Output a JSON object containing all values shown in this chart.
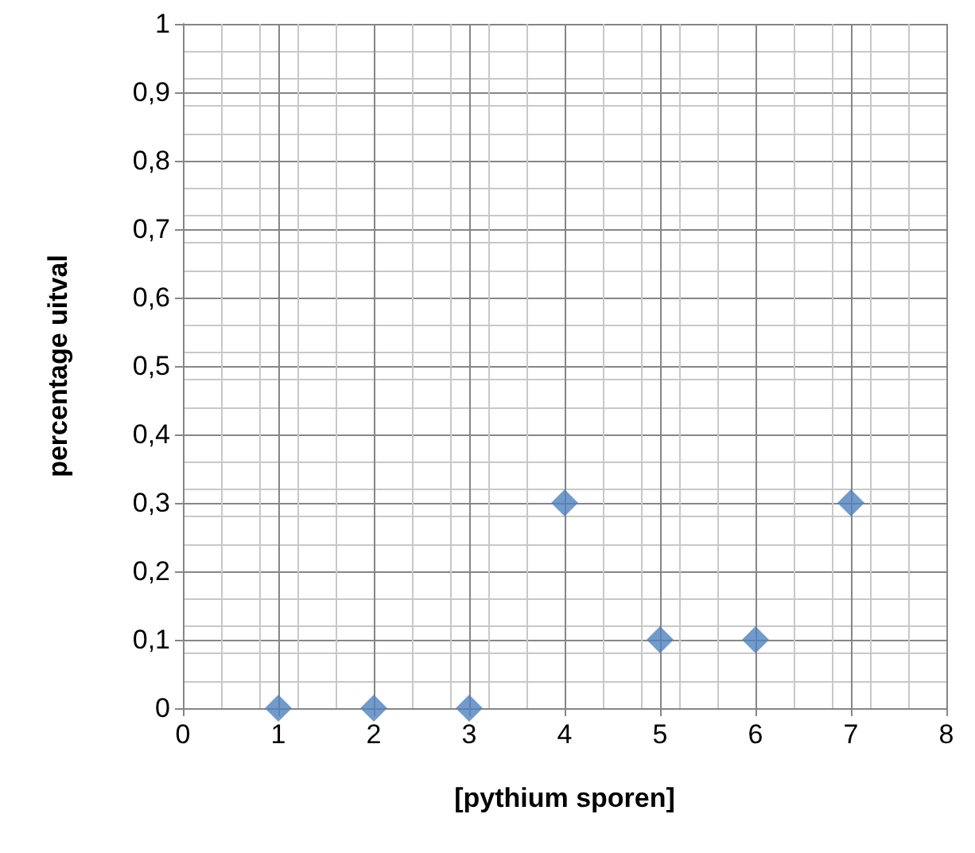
{
  "chart_data": {
    "type": "scatter",
    "xlabel": "[pythium sporen]",
    "ylabel": "percentage uitval",
    "x": [
      1,
      2,
      3,
      4,
      5,
      6,
      7
    ],
    "series": [
      {
        "color": "#4f81bd",
        "values": [
          0,
          0,
          0,
          0.3,
          0.1,
          0.1,
          0.3
        ]
      }
    ],
    "xlim": [
      0,
      8
    ],
    "xticks": [
      0,
      1,
      2,
      3,
      4,
      5,
      6,
      7,
      8
    ],
    "ylim": [
      0,
      1
    ],
    "yticks": [
      0,
      {
        "value": 0.1,
        "label": "0,1"
      },
      {
        "value": 0.2,
        "label": "0,2"
      },
      {
        "value": 0.3,
        "label": "0,3"
      },
      {
        "value": 0.4,
        "label": "0,4"
      },
      {
        "value": 0.5,
        "label": "0,5"
      },
      {
        "value": 0.6,
        "label": "0,6"
      },
      {
        "value": 0.7,
        "label": "0,7"
      },
      {
        "value": 0.8,
        "label": "0,8"
      },
      {
        "value": 0.9,
        "label": "0,9"
      },
      1
    ],
    "grid": true,
    "marker": "diamond"
  }
}
